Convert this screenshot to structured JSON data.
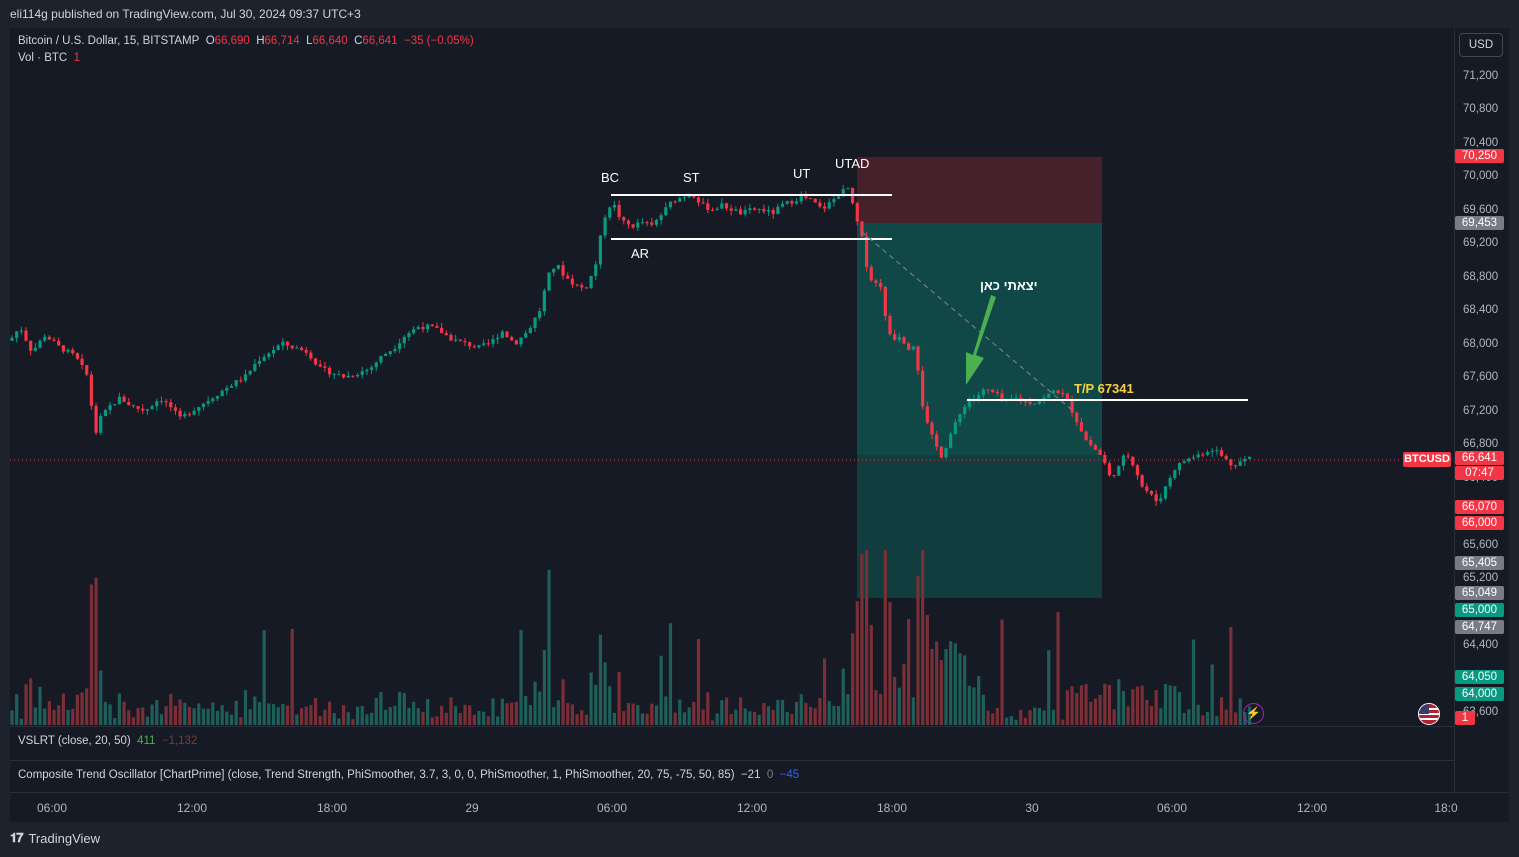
{
  "header": {
    "published": "eli114g published on TradingView.com, Jul 30, 2024 09:37 UTC+3"
  },
  "legend": {
    "symbol": "Bitcoin / U.S. Dollar, 15, BITSTAMP",
    "o_label": "O",
    "o": "66,690",
    "h_label": "H",
    "h": "66,714",
    "l_label": "L",
    "l": "66,640",
    "c_label": "C",
    "c": "66,641",
    "change": "−35 (−0.05%)",
    "vol_label": "Vol · BTC",
    "vol_value": "1"
  },
  "indicators": {
    "vslrt_label": "VSLRT (close, 20, 50)",
    "vslrt_v1": "411",
    "vslrt_v2": "−1,132",
    "cto_label": "Composite Trend Oscillator [ChartPrime] (close, Trend Strength, PhiSmoother, 3.7, 3, 0, 0, PhiSmoother, 1, PhiSmoother, 20, 75, -75, 50, 85)",
    "cto_v1": "−21",
    "cto_v2": "0",
    "cto_v3": "−45"
  },
  "currency": "USD",
  "price_axis_ticks": [
    "71,200",
    "70,800",
    "70,400",
    "70,000",
    "69,600",
    "69,200",
    "68,800",
    "68,400",
    "68,000",
    "67,600",
    "67,200",
    "66,800",
    "66,400",
    "65,600",
    "65,200",
    "64,400",
    "63,600"
  ],
  "price_labels": [
    {
      "text": "70,250",
      "color": "#f23645"
    },
    {
      "text": "69,453",
      "color": "#787b86"
    },
    {
      "text": "66,641",
      "color": "#f23645"
    },
    {
      "text": "07:47",
      "color": "#f23645"
    },
    {
      "text": "66,070",
      "color": "#f23645"
    },
    {
      "text": "66,000",
      "color": "#f23645"
    },
    {
      "text": "65,405",
      "color": "#787b86"
    },
    {
      "text": "65,049",
      "color": "#787b86"
    },
    {
      "text": "65,000",
      "color": "#089981"
    },
    {
      "text": "64,747",
      "color": "#787b86"
    },
    {
      "text": "64,050",
      "color": "#089981"
    },
    {
      "text": "64,000",
      "color": "#089981"
    },
    {
      "text": "1",
      "color": "#f23645"
    }
  ],
  "symbol_tag": "BTCUSD",
  "time_axis": [
    "06:00",
    "12:00",
    "18:00",
    "29",
    "06:00",
    "12:00",
    "18:00",
    "30",
    "06:00",
    "12:00",
    "18:0"
  ],
  "annotations": {
    "bc": "BC",
    "st": "ST",
    "ut": "UT",
    "utad": "UTAD",
    "ar": "AR",
    "exit_here": "יצאתי כאן",
    "tp": "T/P 67341"
  },
  "colors": {
    "up": "#089981",
    "down": "#f23645",
    "bg": "#161a25",
    "tp_text": "#f5d142"
  },
  "footer": {
    "brand": "TradingView"
  },
  "chart_data": {
    "type": "candlestick",
    "title": "Bitcoin / U.S. Dollar, 15, BITSTAMP",
    "ylim": [
      63600,
      71400
    ],
    "path": [
      [
        0,
        68050
      ],
      [
        8,
        68000
      ],
      [
        20,
        68200
      ],
      [
        32,
        67900
      ],
      [
        45,
        68100
      ],
      [
        60,
        67950
      ],
      [
        75,
        67850
      ],
      [
        88,
        67600
      ],
      [
        95,
        66900
      ],
      [
        100,
        67100
      ],
      [
        110,
        67250
      ],
      [
        120,
        67350
      ],
      [
        132,
        67250
      ],
      [
        145,
        67200
      ],
      [
        160,
        67350
      ],
      [
        170,
        67250
      ],
      [
        180,
        67100
      ],
      [
        192,
        67200
      ],
      [
        205,
        67300
      ],
      [
        218,
        67400
      ],
      [
        230,
        67500
      ],
      [
        245,
        67600
      ],
      [
        258,
        67800
      ],
      [
        270,
        67900
      ],
      [
        282,
        68000
      ],
      [
        295,
        67950
      ],
      [
        308,
        67900
      ],
      [
        320,
        67700
      ],
      [
        332,
        67650
      ],
      [
        345,
        67600
      ],
      [
        358,
        67650
      ],
      [
        370,
        67700
      ],
      [
        382,
        67850
      ],
      [
        394,
        67950
      ],
      [
        405,
        68100
      ],
      [
        418,
        68200
      ],
      [
        430,
        68200
      ],
      [
        440,
        68150
      ],
      [
        452,
        68050
      ],
      [
        465,
        68000
      ],
      [
        478,
        67950
      ],
      [
        490,
        68000
      ],
      [
        502,
        68150
      ],
      [
        515,
        68000
      ],
      [
        528,
        68150
      ],
      [
        540,
        68400
      ],
      [
        548,
        68800
      ],
      [
        556,
        68950
      ],
      [
        565,
        68800
      ],
      [
        575,
        68700
      ],
      [
        585,
        68650
      ],
      [
        595,
        68900
      ],
      [
        604,
        69500
      ],
      [
        612,
        69700
      ],
      [
        622,
        69450
      ],
      [
        632,
        69400
      ],
      [
        642,
        69450
      ],
      [
        652,
        69400
      ],
      [
        662,
        69550
      ],
      [
        672,
        69700
      ],
      [
        682,
        69750
      ],
      [
        692,
        69800
      ],
      [
        702,
        69650
      ],
      [
        712,
        69600
      ],
      [
        722,
        69650
      ],
      [
        732,
        69600
      ],
      [
        742,
        69550
      ],
      [
        752,
        69600
      ],
      [
        762,
        69600
      ],
      [
        772,
        69550
      ],
      [
        782,
        69650
      ],
      [
        792,
        69700
      ],
      [
        802,
        69750
      ],
      [
        812,
        69700
      ],
      [
        822,
        69600
      ],
      [
        832,
        69700
      ],
      [
        840,
        69800
      ],
      [
        848,
        69850
      ],
      [
        856,
        69500
      ],
      [
        862,
        69250
      ],
      [
        868,
        68850
      ],
      [
        874,
        68700
      ],
      [
        880,
        68750
      ],
      [
        886,
        68250
      ],
      [
        892,
        68050
      ],
      [
        900,
        68100
      ],
      [
        908,
        67950
      ],
      [
        915,
        68000
      ],
      [
        922,
        67300
      ],
      [
        928,
        67000
      ],
      [
        935,
        66800
      ],
      [
        942,
        66650
      ],
      [
        950,
        66900
      ],
      [
        958,
        67100
      ],
      [
        966,
        67300
      ],
      [
        975,
        67350
      ],
      [
        985,
        67450
      ],
      [
        995,
        67400
      ],
      [
        1005,
        67300
      ],
      [
        1015,
        67350
      ],
      [
        1025,
        67300
      ],
      [
        1035,
        67300
      ],
      [
        1045,
        67350
      ],
      [
        1055,
        67450
      ],
      [
        1062,
        67400
      ],
      [
        1070,
        67250
      ],
      [
        1078,
        67050
      ],
      [
        1086,
        66850
      ],
      [
        1094,
        66750
      ],
      [
        1102,
        66650
      ],
      [
        1110,
        66400
      ],
      [
        1118,
        66500
      ],
      [
        1126,
        66700
      ],
      [
        1134,
        66550
      ],
      [
        1142,
        66300
      ],
      [
        1150,
        66200
      ],
      [
        1158,
        66100
      ],
      [
        1166,
        66300
      ],
      [
        1174,
        66500
      ],
      [
        1184,
        66600
      ],
      [
        1194,
        66650
      ],
      [
        1204,
        66700
      ],
      [
        1214,
        66750
      ],
      [
        1222,
        66650
      ],
      [
        1232,
        66550
      ],
      [
        1242,
        66600
      ],
      [
        1252,
        66650
      ]
    ],
    "volumes": "bars in lower pane; tallest ~65,500 region around 18:00 on 29th"
  }
}
